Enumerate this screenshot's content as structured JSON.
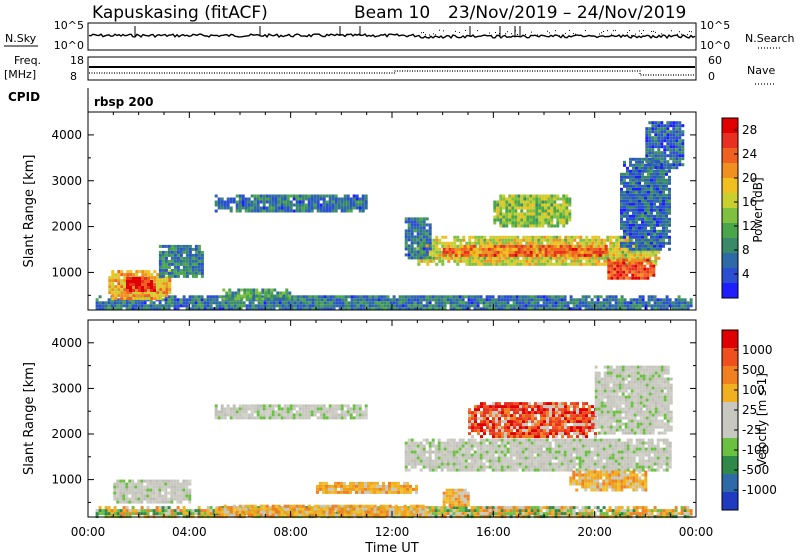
{
  "header": {
    "station": "Kapuskasing (fitACF)",
    "beam": "Beam 10",
    "dates": "23/Nov/2019 – 24/Nov/2019"
  },
  "strips": {
    "nsky_label": "N.Sky",
    "nsky_ticks": [
      "10^5",
      "10^0"
    ],
    "nsearch_label": "N.Search",
    "nsearch_ticks": [
      "10^5",
      "10^0"
    ],
    "freq_label": "Freq.",
    "freq_unit": "[MHz]",
    "freq_ticks": [
      "18",
      "8"
    ],
    "nave_label": "Nave",
    "nave_ticks": [
      "60",
      "0"
    ],
    "cpid_label": "CPID",
    "cpid_value": "rbsp 200"
  },
  "chart_data": [
    {
      "type": "heatmap",
      "name": "power",
      "ylabel": "Slant Range [km]",
      "xlabel": "Time UT",
      "x_ticks": [
        "00:00",
        "04:00",
        "08:00",
        "12:00",
        "16:00",
        "20:00",
        "00:00"
      ],
      "y_ticks": [
        "1000",
        "2000",
        "3000",
        "4000"
      ],
      "xlim": [
        0,
        24
      ],
      "ylim": [
        180,
        4500
      ],
      "colorbar": {
        "label": "Power [dB]",
        "ticks": [
          "4",
          "8",
          "12",
          "16",
          "20",
          "24",
          "28"
        ],
        "range": [
          0,
          30
        ],
        "colors": [
          "#1e1eff",
          "#2a4fd0",
          "#2f6aa8",
          "#3a8a6a",
          "#4aa64a",
          "#7fc040",
          "#c8d030",
          "#f0c020",
          "#f09020",
          "#f06020",
          "#e83020",
          "#e00000"
        ]
      },
      "regions": [
        {
          "t0": 0.3,
          "t1": 23.8,
          "r0": 190,
          "r1": 500,
          "level": 6
        },
        {
          "t0": 0.8,
          "t1": 3.2,
          "r0": 450,
          "r1": 1050,
          "level": 20
        },
        {
          "t0": 1.5,
          "t1": 2.6,
          "r0": 600,
          "r1": 900,
          "level": 28
        },
        {
          "t0": 2.8,
          "t1": 4.5,
          "r0": 900,
          "r1": 1600,
          "level": 7
        },
        {
          "t0": 5.0,
          "t1": 11.0,
          "r0": 2350,
          "r1": 2700,
          "level": 6
        },
        {
          "t0": 5.3,
          "t1": 8.0,
          "r0": 400,
          "r1": 650,
          "level": 10
        },
        {
          "t0": 13.0,
          "t1": 22.5,
          "r0": 1200,
          "r1": 1800,
          "level": 17
        },
        {
          "t0": 14.0,
          "t1": 20.5,
          "r0": 1350,
          "r1": 1600,
          "level": 24
        },
        {
          "t0": 16.0,
          "t1": 19.0,
          "r0": 2000,
          "r1": 2700,
          "level": 14
        },
        {
          "t0": 20.5,
          "t1": 22.3,
          "r0": 850,
          "r1": 1300,
          "level": 26
        },
        {
          "t0": 21.0,
          "t1": 23.0,
          "r0": 1500,
          "r1": 3500,
          "level": 5
        },
        {
          "t0": 22.0,
          "t1": 23.5,
          "r0": 3300,
          "r1": 4300,
          "level": 5
        },
        {
          "t0": 12.5,
          "t1": 13.5,
          "r0": 1300,
          "r1": 2200,
          "level": 6
        }
      ]
    },
    {
      "type": "heatmap",
      "name": "velocity",
      "ylabel": "Slant Range [km]",
      "xlabel": "Time UT",
      "x_ticks": [
        "00:00",
        "04:00",
        "08:00",
        "12:00",
        "16:00",
        "20:00",
        "00:00"
      ],
      "y_ticks": [
        "1000",
        "2000",
        "3000",
        "4000"
      ],
      "xlim": [
        0,
        24
      ],
      "ylim": [
        180,
        4500
      ],
      "colorbar": {
        "label": "Velocity [m s-1]",
        "ticks": [
          "1000",
          "500",
          "100",
          "25",
          "-25",
          "-100",
          "-500",
          "-1000"
        ],
        "colors": [
          "#1f3bbf",
          "#2f6aa8",
          "#2f8a4a",
          "#6ac040",
          "#c8c8c0",
          "#c8c8c0",
          "#f0b020",
          "#f08020",
          "#f05020",
          "#e00000"
        ]
      },
      "regions": [
        {
          "t0": 0.3,
          "t1": 23.8,
          "r0": 190,
          "r1": 420,
          "class": "low_green"
        },
        {
          "t0": 5.0,
          "t1": 13.5,
          "r0": 190,
          "r1": 450,
          "class": "orange"
        },
        {
          "t0": 1.0,
          "t1": 4.0,
          "r0": 500,
          "r1": 1000,
          "class": "gray"
        },
        {
          "t0": 5.0,
          "t1": 11.0,
          "r0": 2350,
          "r1": 2650,
          "class": "gray"
        },
        {
          "t0": 12.5,
          "t1": 23.0,
          "r0": 1200,
          "r1": 1900,
          "class": "gray"
        },
        {
          "t0": 15.0,
          "t1": 20.0,
          "r0": 1950,
          "r1": 2700,
          "class": "orange_red"
        },
        {
          "t0": 19.0,
          "t1": 22.0,
          "r0": 800,
          "r1": 1200,
          "class": "orange"
        },
        {
          "t0": 20.0,
          "t1": 23.0,
          "r0": 2000,
          "r1": 3500,
          "class": "gray"
        },
        {
          "t0": 9.0,
          "t1": 13.0,
          "r0": 700,
          "r1": 950,
          "class": "orange"
        },
        {
          "t0": 14.0,
          "t1": 15.0,
          "r0": 450,
          "r1": 800,
          "class": "orange"
        }
      ]
    }
  ]
}
